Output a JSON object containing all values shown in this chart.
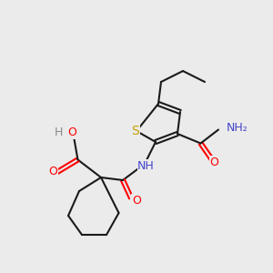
{
  "bg_color": "#ebebeb",
  "bond_color": "#1a1a1a",
  "s_color": "#c8a000",
  "o_color": "#ff0000",
  "n_color": "#4444cc",
  "h_color": "#888888",
  "lw": 1.5,
  "font_size": 9,
  "atoms": {
    "S": {
      "color": "#c8a000"
    },
    "O": {
      "color": "#ff2200"
    },
    "N": {
      "color": "#3355cc"
    },
    "H": {
      "color": "#888888"
    },
    "C": {
      "color": "#1a1a1a"
    }
  }
}
